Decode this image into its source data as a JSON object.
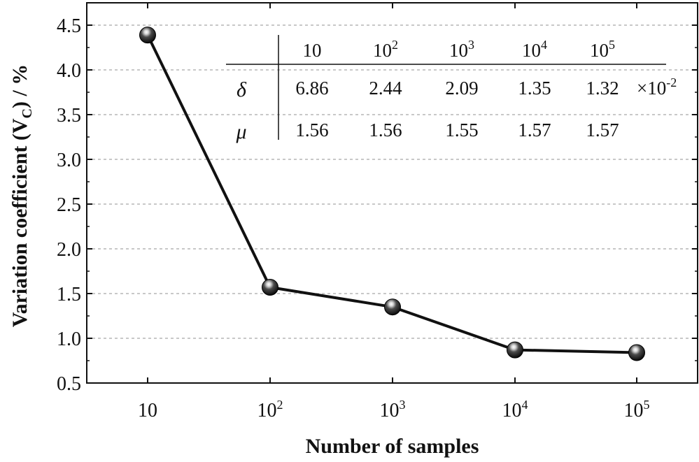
{
  "chart_data": {
    "type": "line",
    "title": "",
    "xlabel": "Number of samples",
    "ylabel": "Variation coefficient (V",
    "ylabel_subscript": "C",
    "ylabel_suffix": ") / %",
    "x_ticks": [
      {
        "base": "10",
        "exp": ""
      },
      {
        "base": "10",
        "exp": "2"
      },
      {
        "base": "10",
        "exp": "3"
      },
      {
        "base": "10",
        "exp": "4"
      },
      {
        "base": "10",
        "exp": "5"
      }
    ],
    "series": [
      {
        "name": "Variation coefficient",
        "values": [
          4.39,
          1.57,
          1.35,
          0.87,
          0.84
        ]
      }
    ],
    "ylim": [
      0.5,
      4.75
    ],
    "y_ticks": [
      "0.5",
      "1.0",
      "1.5",
      "2.0",
      "2.5",
      "3.0",
      "3.5",
      "4.0",
      "4.5"
    ],
    "grid": "horizontal dashed",
    "inset_table": {
      "headers": [
        {
          "base": "10",
          "exp": ""
        },
        {
          "base": "10",
          "exp": "2"
        },
        {
          "base": "10",
          "exp": "3"
        },
        {
          "base": "10",
          "exp": "4"
        },
        {
          "base": "10",
          "exp": "5"
        }
      ],
      "rows": [
        {
          "label": "δ",
          "values": [
            "6.86",
            "2.44",
            "2.09",
            "1.35",
            "1.32"
          ],
          "unit_base": "×10",
          "unit_exp": "-2"
        },
        {
          "label": "μ",
          "values": [
            "1.56",
            "1.56",
            "1.55",
            "1.57",
            "1.57"
          ],
          "unit_base": "",
          "unit_exp": ""
        }
      ]
    },
    "colors": {
      "line": "#111111",
      "grid": "#b5b5b5",
      "marker_dark": "#050505",
      "marker_light": "#ffffff"
    }
  }
}
